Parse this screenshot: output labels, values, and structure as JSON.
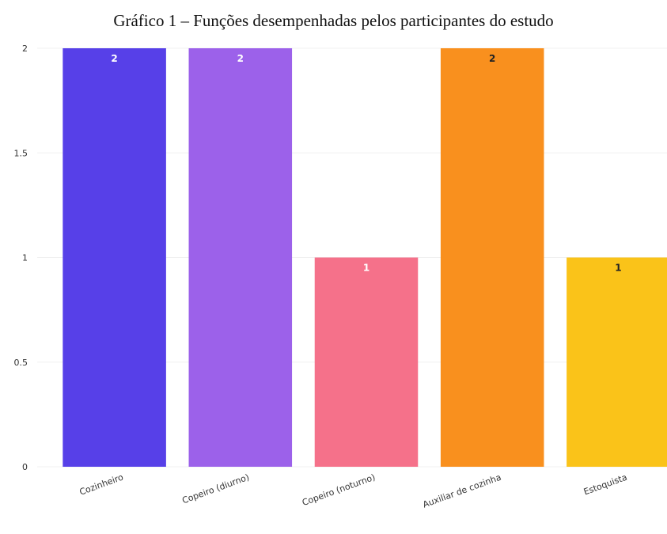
{
  "chart_data": {
    "type": "bar",
    "title": "Gráfico 1 – Funções desempenhadas pelos participantes do estudo",
    "xlabel": "",
    "ylabel": "",
    "ylim": [
      0,
      2
    ],
    "yticks": [
      "0",
      "0.5",
      "1",
      "1.5",
      "2"
    ],
    "grid": true,
    "categories": [
      "Cozinheiro",
      "Copeiro (diurno)",
      "Copeiro (noturno)",
      "Auxiliar de cozinha",
      "Estoquista"
    ],
    "values": [
      2,
      2,
      1,
      2,
      1
    ],
    "data_labels": [
      "2",
      "2",
      "1",
      "2",
      "1"
    ],
    "colors": [
      "#5740E8",
      "#9C61EA",
      "#F5718A",
      "#F9901E",
      "#FAC319"
    ],
    "label_colors": [
      "#ffffff",
      "#ffffff",
      "#ffffff",
      "#222222",
      "#222222"
    ]
  }
}
